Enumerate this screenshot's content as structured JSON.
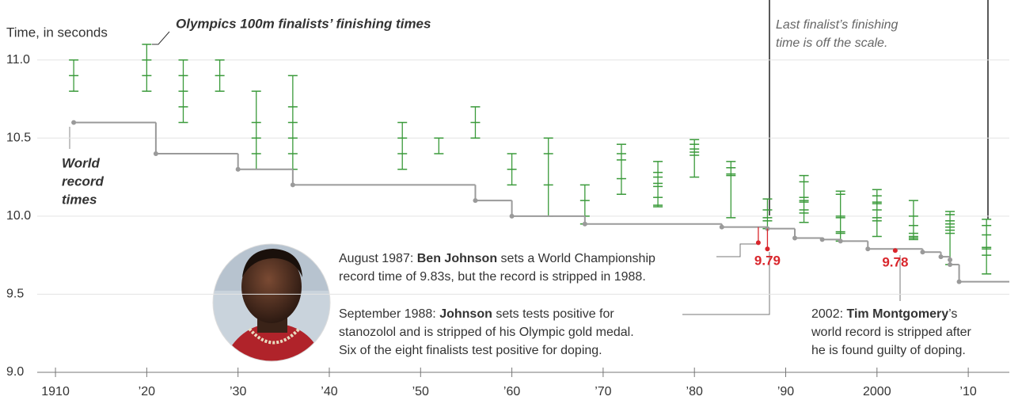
{
  "chart_data": {
    "type": "line",
    "title": "Olympics 100m finalists’ finishing times",
    "y_label": "Time, in seconds",
    "xlim": [
      1908,
      2014.5
    ],
    "ylim": [
      9,
      11.1
    ],
    "xticks": [
      1910,
      {
        "value": 1920,
        "label": "’20"
      },
      {
        "value": 1930,
        "label": "’30"
      },
      {
        "value": 1940,
        "label": "’40"
      },
      {
        "value": 1950,
        "label": "’50"
      },
      {
        "value": 1960,
        "label": "’60"
      },
      {
        "value": 1970,
        "label": "’70"
      },
      {
        "value": 1980,
        "label": "’80"
      },
      {
        "value": 1990,
        "label": "’90"
      },
      2000,
      {
        "value": 2010,
        "label": "’10"
      }
    ],
    "yticks": [
      {
        "value": 9,
        "label": "9.0"
      },
      9.5,
      {
        "value": 10,
        "label": "10.0"
      },
      10.5,
      {
        "value": 11,
        "label": "11.0"
      }
    ],
    "grid": true,
    "world_record": {
      "name_lines": [
        "World",
        "record",
        "times"
      ],
      "color": "#9a9a9a",
      "x": [
        1912,
        1921,
        1930,
        1936,
        1956,
        1960,
        1968,
        1983,
        1988,
        1991,
        1994,
        1996,
        1999,
        2005,
        2007,
        2008,
        2008,
        2009
      ],
      "values": [
        10.6,
        10.4,
        10.3,
        10.2,
        10.1,
        10.0,
        9.95,
        9.93,
        9.92,
        9.86,
        9.85,
        9.84,
        9.79,
        9.77,
        9.74,
        9.72,
        9.69,
        9.58
      ]
    },
    "finalists": {
      "color": "#3a9a3a",
      "x": [
        1912,
        1920,
        1924,
        1928,
        1932,
        1936,
        1948,
        1952,
        1956,
        1960,
        1964,
        1968,
        1972,
        1976,
        1980,
        1984,
        1988,
        1992,
        1996,
        2000,
        2004,
        2008,
        2012
      ],
      "values": [
        [
          10.8,
          10.9,
          11.0
        ],
        [
          10.8,
          10.9,
          11.0,
          11.1
        ],
        [
          10.6,
          10.7,
          10.8,
          10.9,
          11.0
        ],
        [
          10.8,
          10.9,
          11.0
        ],
        [
          10.3,
          10.4,
          10.5,
          10.6,
          10.8
        ],
        [
          10.3,
          10.4,
          10.5,
          10.6,
          10.7,
          10.9
        ],
        [
          10.3,
          10.4,
          10.5,
          10.6
        ],
        [
          10.4,
          10.5
        ],
        [
          10.5,
          10.6,
          10.7
        ],
        [
          10.2,
          10.3,
          10.4
        ],
        [
          10.0,
          10.2,
          10.4,
          10.5
        ],
        [
          9.95,
          10.0,
          10.1,
          10.2
        ],
        [
          10.14,
          10.24,
          10.36,
          10.4,
          10.46
        ],
        [
          10.06,
          10.07,
          10.12,
          10.19,
          10.21,
          10.25,
          10.28,
          10.35
        ],
        [
          10.25,
          10.39,
          10.41,
          10.43,
          10.46,
          10.49
        ],
        [
          9.99,
          10.26,
          10.27,
          10.31,
          10.35
        ],
        [
          9.92,
          9.97,
          9.99,
          10.04,
          10.11
        ],
        [
          9.96,
          10.02,
          10.04,
          10.09,
          10.1,
          10.12,
          10.22,
          10.26
        ],
        [
          9.84,
          9.89,
          9.9,
          9.99,
          10.0,
          10.14,
          10.16
        ],
        [
          9.87,
          9.97,
          9.99,
          10.04,
          10.08,
          10.09,
          10.13,
          10.17
        ],
        [
          9.85,
          9.86,
          9.87,
          9.89,
          9.94,
          10.0,
          10.1
        ],
        [
          9.69,
          9.89,
          9.91,
          9.93,
          9.95,
          9.97,
          10.01,
          10.03
        ],
        [
          9.63,
          9.75,
          9.79,
          9.8,
          9.88,
          9.94,
          9.98
        ]
      ]
    },
    "stripped": {
      "color": "#d9262c",
      "x": [
        1987,
        1988,
        2002
      ],
      "values": [
        9.83,
        9.79,
        9.78
      ],
      "value_labels": [
        null,
        "9.79",
        "9.78"
      ]
    },
    "off_scale_note": [
      "Last finalist’s finishing",
      "time is off the scale."
    ],
    "annotations": [
      {
        "lines": [
          [
            {
              "text": "August 1987: "
            },
            {
              "text": "Ben Johnson",
              "bold": true
            },
            {
              "text": " sets a World Championship"
            }
          ],
          [
            {
              "text": "record time of 9.83s, but the record is stripped in 1988."
            }
          ]
        ]
      },
      {
        "lines": [
          [
            {
              "text": "September 1988: "
            },
            {
              "text": "Johnson",
              "bold": true
            },
            {
              "text": " sets tests positive for"
            }
          ],
          [
            {
              "text": "stanozolol and is stripped of his Olympic gold medal."
            }
          ],
          [
            {
              "text": "Six of the eight finalists test positive for doping."
            }
          ]
        ]
      },
      {
        "lines": [
          [
            {
              "text": "2002: "
            },
            {
              "text": "Tim Montgomery",
              "bold": true
            },
            {
              "text": "’s"
            }
          ],
          [
            {
              "text": "world record is stripped after"
            }
          ],
          [
            {
              "text": "he is found guilty of doping."
            }
          ]
        ]
      }
    ]
  }
}
